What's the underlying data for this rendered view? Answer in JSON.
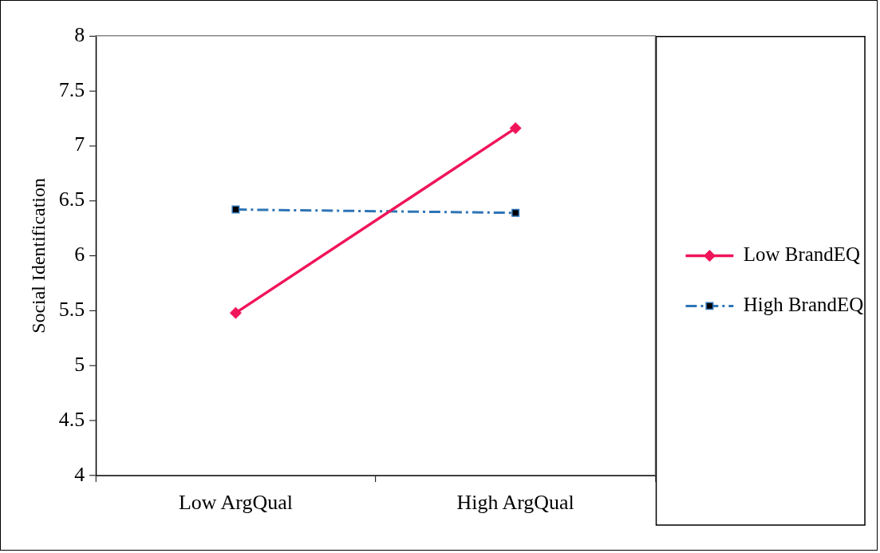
{
  "chart_data": {
    "type": "line",
    "ylabel": "Social Identification",
    "categories": [
      "Low ArgQual",
      "High ArgQual"
    ],
    "series": [
      {
        "name": "Low BrandEQ",
        "color": "#f0145a",
        "values": [
          5.48,
          7.16
        ],
        "marker": "diamond",
        "line_style": "solid"
      },
      {
        "name": "High BrandEQ",
        "color": "#2e75b6",
        "values": [
          6.42,
          6.39
        ],
        "marker": "square",
        "line_style": "dashdot"
      }
    ],
    "ylim": [
      4,
      8
    ],
    "yticks": [
      4,
      4.5,
      5,
      5.5,
      6,
      6.5,
      7,
      7.5,
      8
    ],
    "grid": false,
    "legend": "right"
  }
}
